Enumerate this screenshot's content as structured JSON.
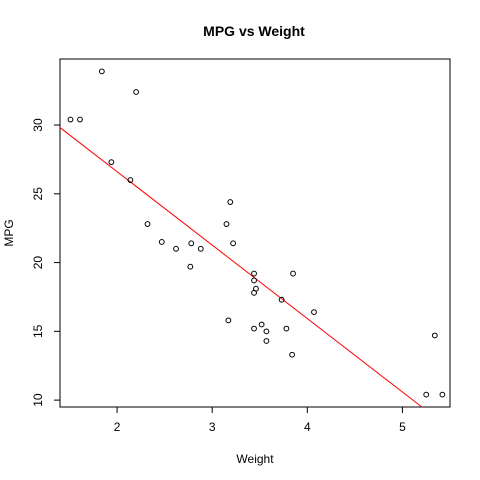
{
  "chart_data": {
    "type": "scatter",
    "title": "MPG vs Weight",
    "xlabel": "Weight",
    "ylabel": "MPG",
    "xlim": [
      1.4,
      5.5
    ],
    "ylim": [
      9.5,
      34.8
    ],
    "xticks": [
      2,
      3,
      4,
      5
    ],
    "yticks": [
      10,
      15,
      20,
      25,
      30
    ],
    "x_tick_labels": [
      "2",
      "3",
      "4",
      "5"
    ],
    "y_tick_labels": [
      "10",
      "15",
      "20",
      "25",
      "30"
    ],
    "grid": false,
    "point_style": "open-circle",
    "point_color": "#000000",
    "fit_line": {
      "intercept": 37.29,
      "slope": -5.34,
      "color": "#ff0000"
    },
    "points": [
      {
        "x": 1.51,
        "y": 30.4
      },
      {
        "x": 1.61,
        "y": 30.4
      },
      {
        "x": 1.84,
        "y": 33.9
      },
      {
        "x": 1.94,
        "y": 27.3
      },
      {
        "x": 2.14,
        "y": 26.0
      },
      {
        "x": 2.2,
        "y": 32.4
      },
      {
        "x": 2.32,
        "y": 22.8
      },
      {
        "x": 2.47,
        "y": 21.5
      },
      {
        "x": 2.62,
        "y": 21.0
      },
      {
        "x": 2.77,
        "y": 19.7
      },
      {
        "x": 2.78,
        "y": 21.4
      },
      {
        "x": 2.88,
        "y": 21.0
      },
      {
        "x": 3.15,
        "y": 22.8
      },
      {
        "x": 3.17,
        "y": 15.8
      },
      {
        "x": 3.19,
        "y": 24.4
      },
      {
        "x": 3.22,
        "y": 21.4
      },
      {
        "x": 3.44,
        "y": 18.7
      },
      {
        "x": 3.44,
        "y": 19.2
      },
      {
        "x": 3.44,
        "y": 17.8
      },
      {
        "x": 3.46,
        "y": 18.1
      },
      {
        "x": 3.44,
        "y": 15.2
      },
      {
        "x": 3.52,
        "y": 15.5
      },
      {
        "x": 3.57,
        "y": 14.3
      },
      {
        "x": 3.57,
        "y": 15.0
      },
      {
        "x": 3.73,
        "y": 17.3
      },
      {
        "x": 3.78,
        "y": 15.2
      },
      {
        "x": 3.84,
        "y": 13.3
      },
      {
        "x": 3.85,
        "y": 19.2
      },
      {
        "x": 4.07,
        "y": 16.4
      },
      {
        "x": 5.25,
        "y": 10.4
      },
      {
        "x": 5.34,
        "y": 14.7
      },
      {
        "x": 5.42,
        "y": 10.4
      }
    ]
  }
}
